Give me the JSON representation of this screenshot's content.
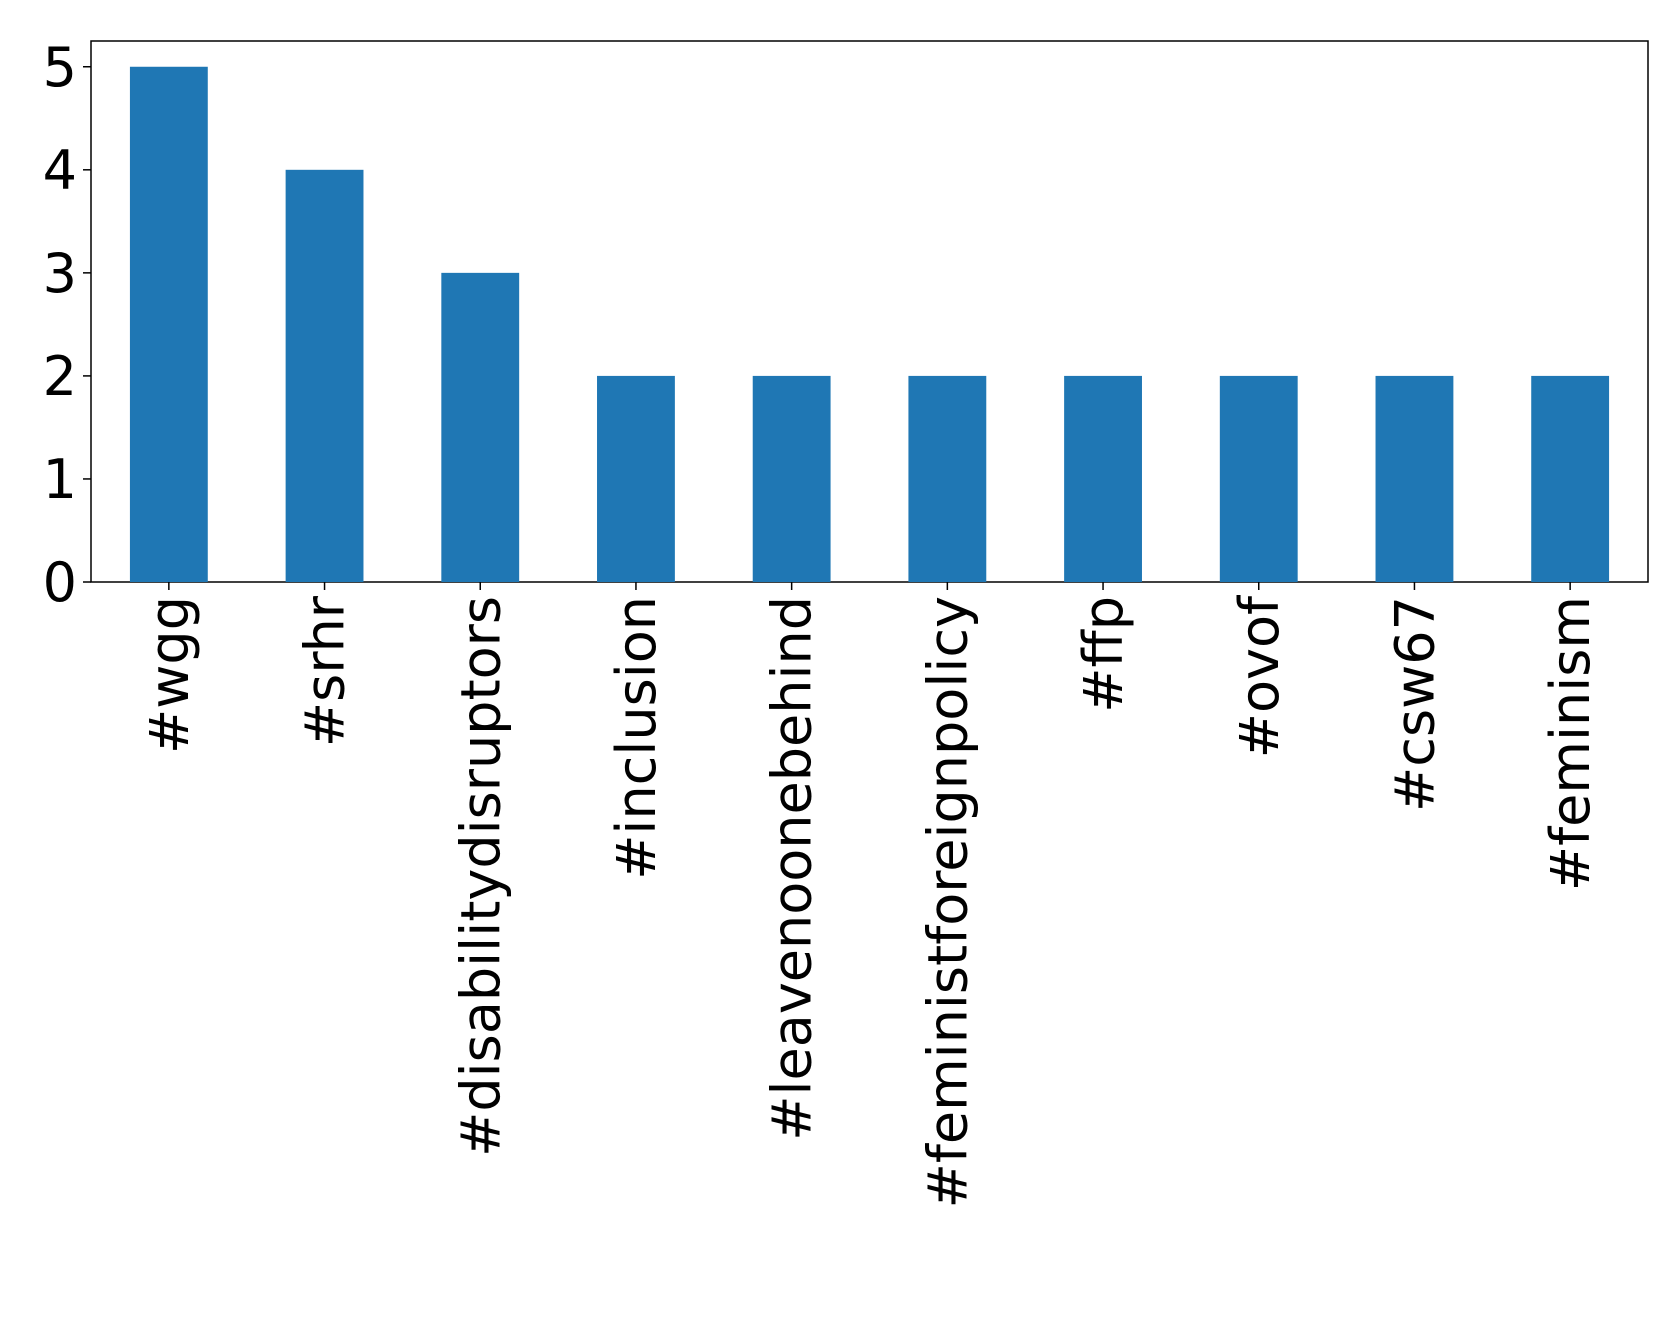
{
  "chart_data": {
    "type": "bar",
    "categories": [
      "#wgg",
      "#srhr",
      "#disabilitydisruptors",
      "#inclusion",
      "#leavenoonebehind",
      "#feministforeignpolicy",
      "#ffp",
      "#ovof",
      "#csw67",
      "#feminism"
    ],
    "values": [
      5,
      4,
      3,
      2,
      2,
      2,
      2,
      2,
      2,
      2
    ],
    "color": "#1f77b4",
    "ylim": [
      0,
      5.25
    ],
    "yticks": [
      0,
      1,
      2,
      3,
      4,
      5
    ],
    "grid": false
  }
}
